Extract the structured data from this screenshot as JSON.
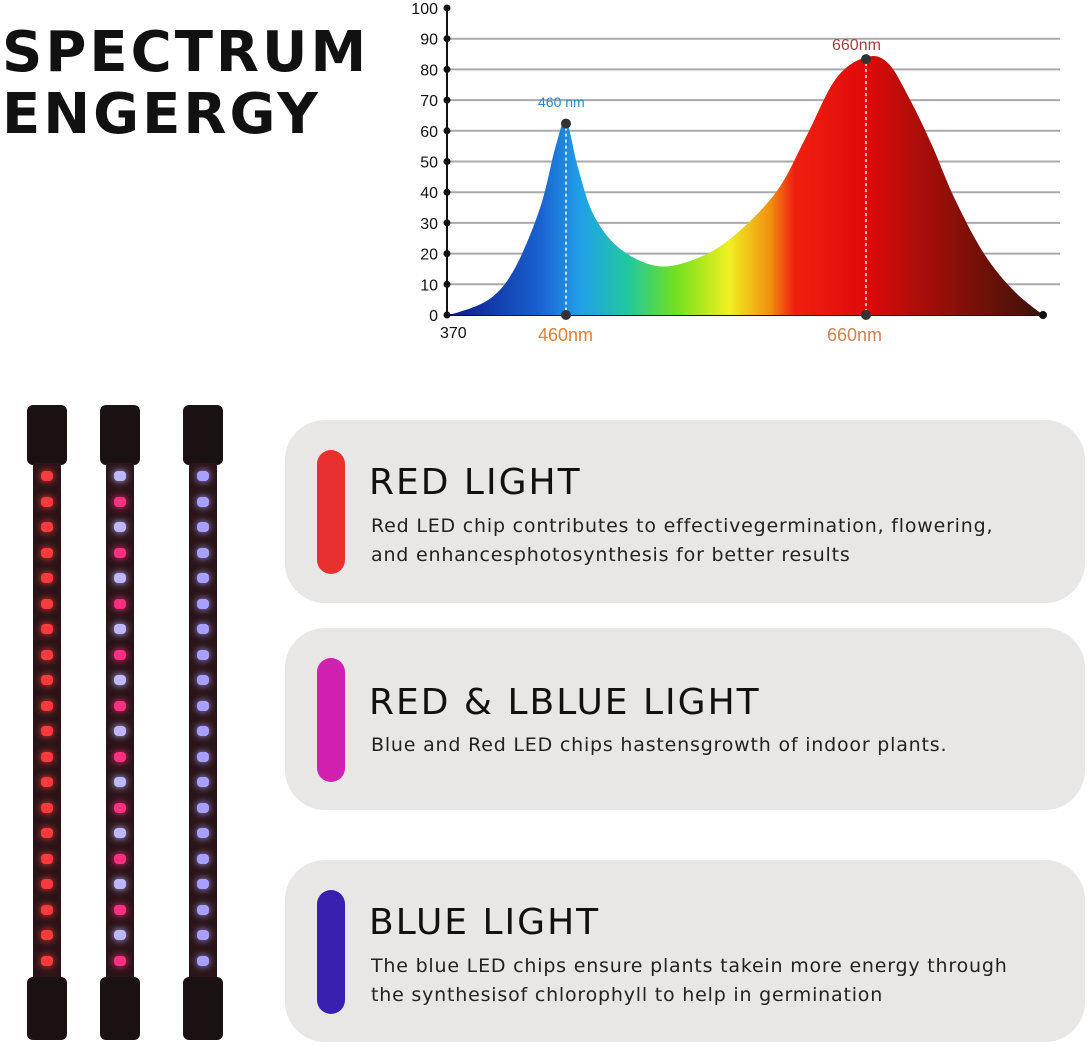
{
  "heading": {
    "line1": "SPECTRUM",
    "line2": "ENGERGY"
  },
  "chart_data": {
    "type": "area",
    "yticks": [
      0,
      10,
      20,
      30,
      40,
      50,
      60,
      70,
      80,
      90,
      100
    ],
    "ylim": [
      0,
      100
    ],
    "xtick_start": "370",
    "x_labels": [
      "460nm",
      "660nm"
    ],
    "peak_labels": [
      "460 nm",
      "660nm"
    ],
    "grid": true,
    "points": [
      [
        370,
        0
      ],
      [
        400,
        5
      ],
      [
        420,
        15
      ],
      [
        440,
        35
      ],
      [
        452,
        55
      ],
      [
        460,
        63
      ],
      [
        468,
        48
      ],
      [
        478,
        33
      ],
      [
        495,
        22
      ],
      [
        520,
        16
      ],
      [
        545,
        18
      ],
      [
        570,
        25
      ],
      [
        600,
        40
      ],
      [
        620,
        58
      ],
      [
        640,
        77
      ],
      [
        660,
        84
      ],
      [
        675,
        82
      ],
      [
        690,
        70
      ],
      [
        705,
        55
      ],
      [
        720,
        38
      ],
      [
        740,
        20
      ],
      [
        760,
        8
      ],
      [
        780,
        0
      ]
    ]
  },
  "cards": [
    {
      "title": "RED LIGHT",
      "desc1": "Red LED chip contributes to effectivegermination, flowering,",
      "desc2": "and enhancesphotosynthesis for better results",
      "color": "#e8302e"
    },
    {
      "title": "RED & LBLUE LIGHT",
      "desc1": "Blue and Red LED chips hastensgrowth of indoor plants.",
      "desc2": "",
      "color": "#d020b0"
    },
    {
      "title": "BLUE LIGHT",
      "desc1": "The blue LED chips ensure plants takein more energy through",
      "desc2": "the synthesisof chlorophyll to help in germination",
      "color": "#3a1eb0"
    }
  ],
  "bars": [
    {
      "type": "red"
    },
    {
      "type": "mixed"
    },
    {
      "type": "blue"
    }
  ]
}
